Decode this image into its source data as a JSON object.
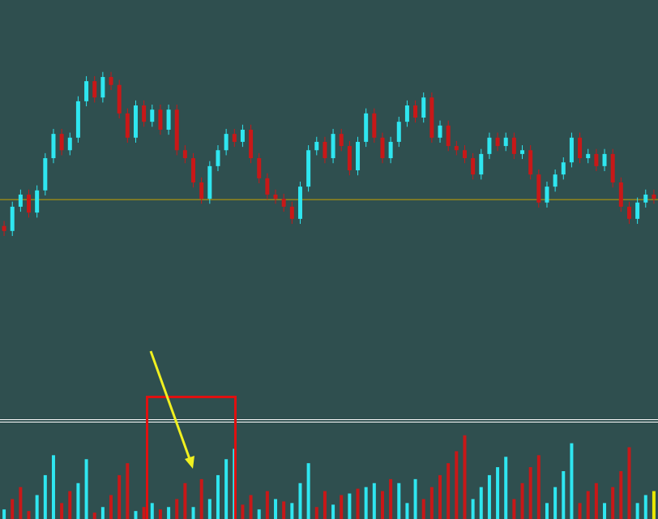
{
  "chart_data": [
    {
      "type": "candlestick",
      "background": "#2f4f4f",
      "up_color": "#2fe6f0",
      "down_color": "#c81818",
      "ylim": [
        0,
        100
      ],
      "level": 52.3,
      "level_color": "#c8a000",
      "open": [
        46.0,
        44.8,
        50.6,
        53.5,
        49.2,
        54.5,
        62.2,
        68.0,
        64.1,
        67.1,
        75.8,
        80.6,
        76.7,
        81.6,
        79.7,
        72.9,
        67.1,
        74.8,
        70.9,
        73.8,
        69.0,
        73.8,
        64.1,
        62.2,
        56.4,
        52.5,
        60.3,
        64.1,
        68.0,
        66.1,
        69.0,
        62.2,
        57.4,
        53.5,
        52.5,
        50.6,
        47.7,
        55.4,
        64.1,
        66.1,
        62.2,
        68.0,
        65.1,
        59.3,
        66.1,
        72.9,
        67.1,
        62.2,
        66.1,
        70.9,
        74.8,
        71.9,
        76.7,
        67.1,
        70.0,
        65.1,
        64.1,
        62.2,
        58.3,
        63.2,
        67.1,
        65.1,
        67.1,
        63.2,
        64.1,
        58.3,
        51.6,
        55.4,
        58.3,
        61.2,
        67.1,
        62.2,
        63.2,
        60.3,
        63.2,
        56.4,
        50.6,
        47.7,
        51.6,
        53.5
      ],
      "high": [
        47.2,
        51.8,
        54.7,
        54.7,
        55.7,
        63.4,
        69.2,
        69.2,
        68.3,
        77.0,
        81.8,
        81.8,
        82.8,
        82.8,
        80.9,
        74.1,
        76.0,
        76.0,
        75.0,
        75.0,
        75.0,
        75.0,
        65.3,
        63.4,
        57.6,
        61.5,
        65.3,
        69.2,
        69.2,
        70.2,
        70.2,
        63.4,
        58.6,
        54.7,
        53.7,
        51.8,
        56.6,
        65.3,
        67.3,
        67.3,
        69.2,
        69.2,
        66.3,
        67.3,
        74.1,
        74.1,
        68.3,
        67.3,
        72.1,
        76.0,
        76.0,
        77.9,
        77.9,
        71.2,
        71.2,
        66.3,
        65.3,
        63.4,
        64.4,
        68.3,
        68.3,
        68.3,
        68.3,
        65.3,
        65.3,
        59.5,
        56.6,
        59.5,
        62.4,
        68.3,
        68.3,
        64.4,
        64.4,
        64.4,
        64.4,
        57.6,
        51.8,
        52.8,
        54.7,
        54.7
      ],
      "low": [
        43.6,
        43.6,
        49.4,
        48.0,
        48.0,
        53.3,
        61.0,
        62.9,
        62.9,
        65.9,
        74.6,
        75.5,
        75.5,
        78.5,
        71.7,
        65.9,
        65.9,
        69.7,
        69.7,
        67.8,
        67.8,
        62.9,
        61.0,
        55.2,
        51.3,
        51.3,
        59.1,
        62.9,
        64.9,
        64.9,
        61.0,
        56.2,
        52.3,
        51.3,
        49.4,
        46.5,
        46.5,
        54.2,
        62.9,
        61.0,
        61.0,
        63.9,
        58.1,
        58.1,
        64.9,
        65.9,
        61.0,
        61.0,
        64.9,
        69.7,
        70.7,
        70.7,
        65.9,
        65.9,
        63.9,
        62.9,
        61.0,
        57.1,
        57.1,
        62.0,
        63.9,
        63.9,
        62.0,
        62.0,
        57.1,
        50.4,
        50.4,
        54.2,
        57.1,
        60.0,
        61.0,
        61.0,
        59.1,
        59.1,
        55.2,
        49.4,
        46.5,
        46.5,
        50.4,
        51.3
      ],
      "close": [
        44.8,
        50.6,
        53.5,
        49.2,
        54.5,
        62.2,
        68.0,
        64.1,
        67.1,
        75.8,
        80.6,
        76.7,
        81.6,
        79.7,
        72.9,
        67.1,
        74.8,
        70.9,
        73.8,
        69.0,
        73.8,
        64.1,
        62.2,
        56.4,
        52.5,
        60.3,
        64.1,
        68.0,
        66.1,
        69.0,
        62.2,
        57.4,
        53.5,
        52.5,
        50.6,
        47.7,
        55.4,
        64.1,
        66.1,
        62.2,
        68.0,
        65.1,
        59.3,
        66.1,
        72.9,
        67.1,
        62.2,
        66.1,
        70.9,
        74.8,
        71.9,
        76.7,
        67.1,
        70.0,
        65.1,
        64.1,
        62.2,
        58.3,
        63.2,
        67.1,
        65.1,
        67.1,
        63.2,
        64.1,
        58.3,
        51.6,
        55.4,
        58.3,
        61.2,
        67.1,
        62.2,
        63.2,
        60.3,
        63.2,
        56.4,
        50.6,
        47.7,
        51.6,
        53.5,
        52.5
      ]
    },
    {
      "type": "bar",
      "ylim": [
        0,
        120
      ],
      "values": [
        12,
        25,
        40,
        10,
        30,
        55,
        80,
        20,
        35,
        45,
        75,
        8,
        15,
        30,
        55,
        70,
        10,
        15,
        20,
        12,
        15,
        25,
        45,
        15,
        50,
        25,
        55,
        75,
        88,
        18,
        30,
        12,
        35,
        25,
        22,
        20,
        45,
        70,
        15,
        35,
        18,
        30,
        32,
        38,
        40,
        45,
        35,
        50,
        45,
        20,
        50,
        25,
        40,
        55,
        70,
        85,
        105,
        25,
        40,
        55,
        65,
        78,
        25,
        45,
        65,
        80,
        20,
        40,
        60,
        95,
        20,
        35,
        45,
        20,
        40,
        60,
        90,
        20,
        30,
        35
      ],
      "colors": [
        "#2fe6f0",
        "#c81818",
        "#c81818",
        "#c81818",
        "#2fe6f0",
        "#2fe6f0",
        "#2fe6f0",
        "#c81818",
        "#c81818",
        "#2fe6f0",
        "#2fe6f0",
        "#c81818",
        "#2fe6f0",
        "#c81818",
        "#c81818",
        "#c81818",
        "#2fe6f0",
        "#c81818",
        "#2fe6f0",
        "#c81818",
        "#2fe6f0",
        "#c81818",
        "#c81818",
        "#2fe6f0",
        "#c81818",
        "#2fe6f0",
        "#2fe6f0",
        "#2fe6f0",
        "#2fe6f0",
        "#c81818",
        "#c81818",
        "#2fe6f0",
        "#c81818",
        "#2fe6f0",
        "#c81818",
        "#2fe6f0",
        "#2fe6f0",
        "#2fe6f0",
        "#c81818",
        "#c81818",
        "#2fe6f0",
        "#c81818",
        "#2fe6f0",
        "#c81818",
        "#2fe6f0",
        "#2fe6f0",
        "#c81818",
        "#c81818",
        "#2fe6f0",
        "#2fe6f0",
        "#2fe6f0",
        "#c81818",
        "#c81818",
        "#c81818",
        "#c81818",
        "#c81818",
        "#c81818",
        "#2fe6f0",
        "#2fe6f0",
        "#2fe6f0",
        "#2fe6f0",
        "#2fe6f0",
        "#c81818",
        "#c81818",
        "#c81818",
        "#c81818",
        "#2fe6f0",
        "#2fe6f0",
        "#2fe6f0",
        "#2fe6f0",
        "#c81818",
        "#c81818",
        "#c81818",
        "#2fe6f0",
        "#c81818",
        "#c81818",
        "#c81818",
        "#2fe6f0",
        "#2fe6f0",
        "#e8e800"
      ]
    }
  ]
}
